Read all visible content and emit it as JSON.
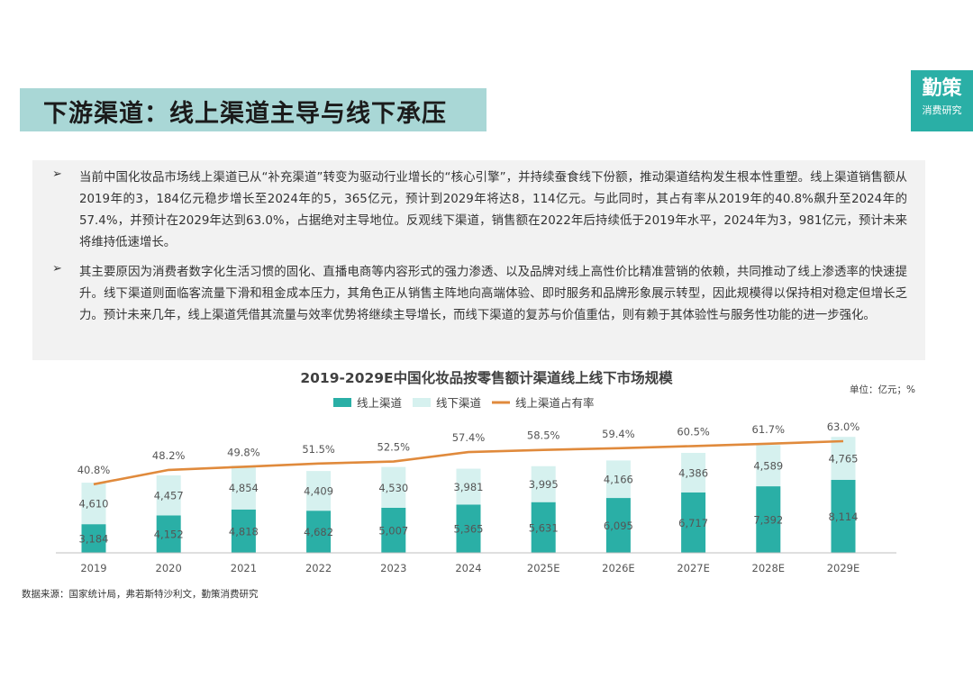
{
  "header": {
    "title": "下游渠道：线上渠道主导与线下承压",
    "logo_main": "勤策",
    "logo_sub": "消费研究"
  },
  "summary": {
    "bullet_symbol": "➢",
    "bullets": [
      "当前中国化妆品市场线上渠道已从“补充渠道”转变为驱动行业增长的“核心引擎”，并持续蚕食线下份额，推动渠道结构发生根本性重塑。线上渠道销售额从2019年的3，184亿元稳步增长至2024年的5，365亿元，预计到2029年将达8，114亿元。与此同时，其占有率从2019年的40.8%飙升至2024年的57.4%，并预计在2029年达到63.0%，占据绝对主导地位。反观线下渠道，销售额在2022年后持续低于2019年水平，2024年为3，981亿元，预计未来将维持低速增长。",
      "其主要原因为消费者数字化生活习惯的固化、直播电商等内容形式的强力渗透、以及品牌对线上高性价比精准营销的依赖，共同推动了线上渗透率的快速提升。线下渠道则面临客流量下滑和租金成本压力，其角色正从销售主阵地向高端体验、即时服务和品牌形象展示转型，因此规模得以保持相对稳定但增长乏力。预计未来几年，线上渠道凭借其流量与效率优势将继续主导增长，而线下渠道的复苏与价值重估，则有赖于其体验性与服务性功能的进一步强化。"
    ]
  },
  "chart_data": {
    "type": "bar",
    "stacked": true,
    "title": "2019-2029E中国化妆品按零售额计渠道线上线下市场规模",
    "unit_label": "单位：亿元；%",
    "categories": [
      "2019",
      "2020",
      "2021",
      "2022",
      "2023",
      "2024",
      "2025E",
      "2026E",
      "2027E",
      "2028E",
      "2029E"
    ],
    "series": [
      {
        "name": "线上渠道",
        "values": [
          3184,
          4152,
          4818,
          4682,
          5007,
          5365,
          5631,
          6095,
          6717,
          7392,
          8114
        ],
        "color": "#2aafa6"
      },
      {
        "name": "线下渠道",
        "values": [
          4610,
          4457,
          4854,
          4409,
          4530,
          3981,
          3995,
          4166,
          4386,
          4589,
          4765
        ],
        "color": "#d6f1ef"
      }
    ],
    "line_series": {
      "name": "线上渠道占有率",
      "values": [
        40.8,
        48.2,
        49.8,
        51.5,
        52.5,
        57.4,
        58.5,
        59.4,
        60.5,
        61.7,
        63.0
      ],
      "suffix": "%",
      "color": "#e08a3c"
    },
    "legend_position": "top",
    "grid": false
  },
  "source_note": "数据来源：国家统计局，弗若斯特沙利文，勤策消费研究"
}
